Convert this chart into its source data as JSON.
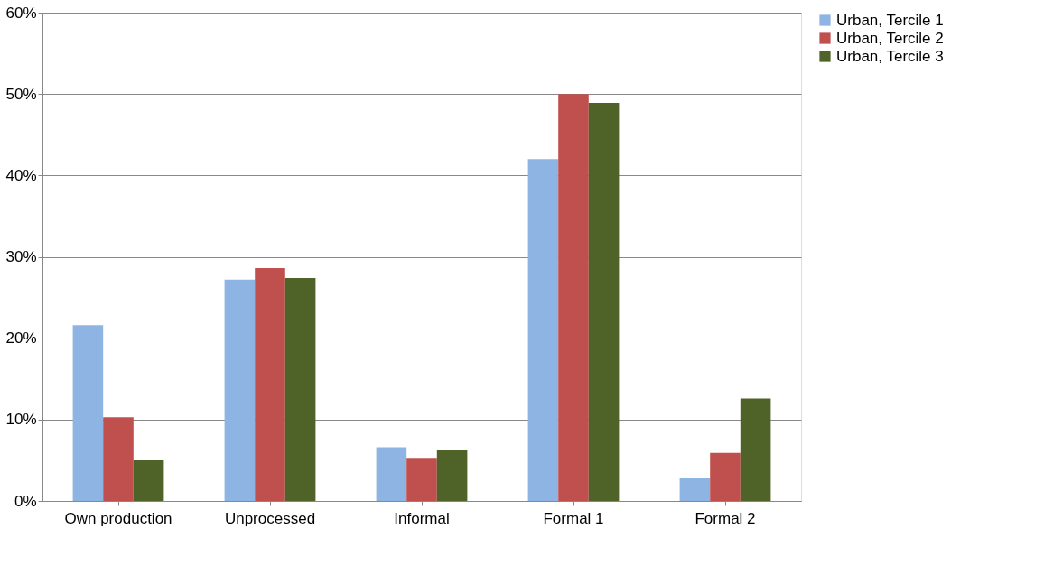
{
  "chart_data": {
    "type": "bar",
    "categories": [
      "Own production",
      "Unprocessed",
      "Informal",
      "Formal  1",
      "Formal 2"
    ],
    "series": [
      {
        "name": "Urban, Tercile 1",
        "color": "#8eb4e3",
        "values": [
          21.6,
          27.2,
          6.6,
          42.0,
          2.8
        ]
      },
      {
        "name": "Urban, Tercile 2",
        "color": "#c0504d",
        "values": [
          10.3,
          28.6,
          5.3,
          50.0,
          5.9
        ]
      },
      {
        "name": "Urban, Tercile 3",
        "color": "#4f6228",
        "values": [
          5.0,
          27.4,
          6.2,
          48.9,
          12.6
        ]
      }
    ],
    "ylim": [
      0,
      60
    ],
    "yticks": [
      {
        "value": 0,
        "label": "0%"
      },
      {
        "value": 10,
        "label": "10%"
      },
      {
        "value": 20,
        "label": "20%"
      },
      {
        "value": 30,
        "label": "30%"
      },
      {
        "value": 40,
        "label": "40%"
      },
      {
        "value": 50,
        "label": "50%"
      },
      {
        "value": 60,
        "label": "60%"
      }
    ],
    "grid": "y",
    "legend": "right"
  }
}
